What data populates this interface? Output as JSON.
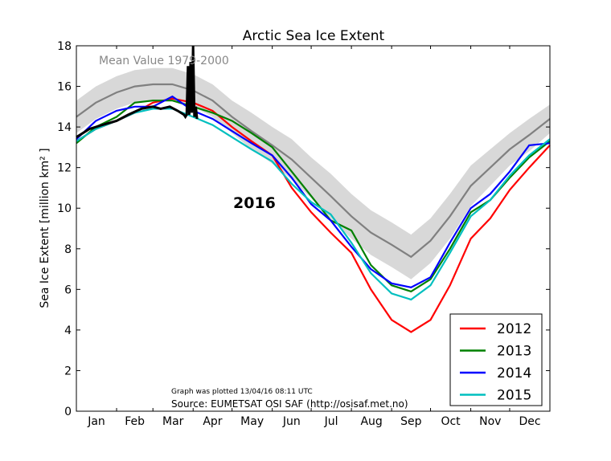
{
  "chart_data": {
    "type": "line",
    "title": "Arctic Sea Ice Extent",
    "ylabel": "Sea Ice Extent [million km² ]",
    "xlabel": "",
    "ylim": [
      0,
      18
    ],
    "xlim_day_of_year": [
      0,
      365
    ],
    "yticks": [
      0,
      2,
      4,
      6,
      8,
      10,
      12,
      14,
      16,
      18
    ],
    "month_labels": [
      "Jan",
      "Feb",
      "Mar",
      "Apr",
      "May",
      "Jun",
      "Jul",
      "Aug",
      "Sep",
      "Oct",
      "Nov",
      "Dec"
    ],
    "annotations": {
      "mean_label": "Mean Value 1979-2000",
      "year_label": "2016",
      "plotted": "Graph was plotted 13/04/16 08:11 UTC",
      "source": "Source: EUMETSAT OSI SAF (http://osisaf.met.no)"
    },
    "legend_position": "lower-right",
    "x_day_of_year": [
      0,
      15,
      31,
      45,
      59,
      74,
      90,
      105,
      120,
      135,
      151,
      166,
      181,
      196,
      212,
      227,
      243,
      258,
      273,
      288,
      304,
      319,
      334,
      349,
      365
    ],
    "mean": {
      "color": "#808080",
      "values": [
        14.5,
        15.2,
        15.7,
        16.0,
        16.1,
        16.1,
        15.8,
        15.3,
        14.5,
        13.8,
        13.1,
        12.4,
        11.5,
        10.6,
        9.6,
        8.8,
        8.2,
        7.6,
        8.4,
        9.6,
        11.1,
        12.0,
        12.9,
        13.6,
        14.4
      ],
      "band_halfwidth": [
        0.8,
        0.8,
        0.8,
        0.8,
        0.8,
        0.8,
        0.8,
        0.8,
        0.8,
        0.9,
        0.9,
        1.0,
        1.0,
        1.1,
        1.1,
        1.1,
        1.1,
        1.1,
        1.1,
        1.1,
        1.0,
        0.9,
        0.8,
        0.8,
        0.7
      ],
      "band_color": "#d8d8d8"
    },
    "series": [
      {
        "name": "2012",
        "color": "#ff0000",
        "values": [
          13.3,
          13.9,
          14.3,
          14.7,
          15.2,
          15.4,
          15.2,
          14.8,
          14.0,
          13.3,
          12.6,
          11.0,
          9.8,
          8.8,
          7.8,
          6.0,
          4.5,
          3.9,
          4.5,
          6.2,
          8.5,
          9.5,
          10.9,
          12.0,
          13.1
        ]
      },
      {
        "name": "2013",
        "color": "#008000",
        "values": [
          13.2,
          14.0,
          14.5,
          15.2,
          15.3,
          15.3,
          15.0,
          14.7,
          14.3,
          13.7,
          13.0,
          11.8,
          10.6,
          9.4,
          8.9,
          7.2,
          6.2,
          5.9,
          6.5,
          8.0,
          9.8,
          10.4,
          11.5,
          12.5,
          13.3
        ]
      },
      {
        "name": "2014",
        "color": "#0000ff",
        "values": [
          13.4,
          14.3,
          14.8,
          15.0,
          15.0,
          15.5,
          14.8,
          14.4,
          13.8,
          13.2,
          12.6,
          11.5,
          10.2,
          9.4,
          8.1,
          7.0,
          6.3,
          6.1,
          6.6,
          8.3,
          10.0,
          10.7,
          11.8,
          13.1,
          13.2
        ]
      },
      {
        "name": "2015",
        "color": "#00bfbf",
        "values": [
          13.3,
          13.9,
          14.3,
          14.7,
          14.9,
          14.9,
          14.5,
          14.1,
          13.5,
          12.9,
          12.3,
          11.2,
          10.3,
          9.7,
          8.3,
          6.8,
          5.8,
          5.5,
          6.2,
          7.8,
          9.6,
          10.4,
          11.6,
          12.6,
          13.4
        ]
      }
    ],
    "current_year": {
      "name": "2016",
      "color": "#000000",
      "x_day_of_year": [
        0,
        10,
        20,
        31,
        40,
        50,
        59,
        65,
        72,
        78,
        83,
        84,
        85,
        86,
        87,
        88,
        89,
        90,
        91,
        92,
        93
      ],
      "values": [
        13.5,
        13.9,
        14.1,
        14.3,
        14.6,
        14.9,
        15.0,
        14.9,
        15.0,
        14.8,
        14.6,
        14.5,
        14.6,
        17.0,
        14.6,
        17.2,
        14.7,
        18.0,
        14.5,
        15.0,
        14.4
      ]
    }
  }
}
